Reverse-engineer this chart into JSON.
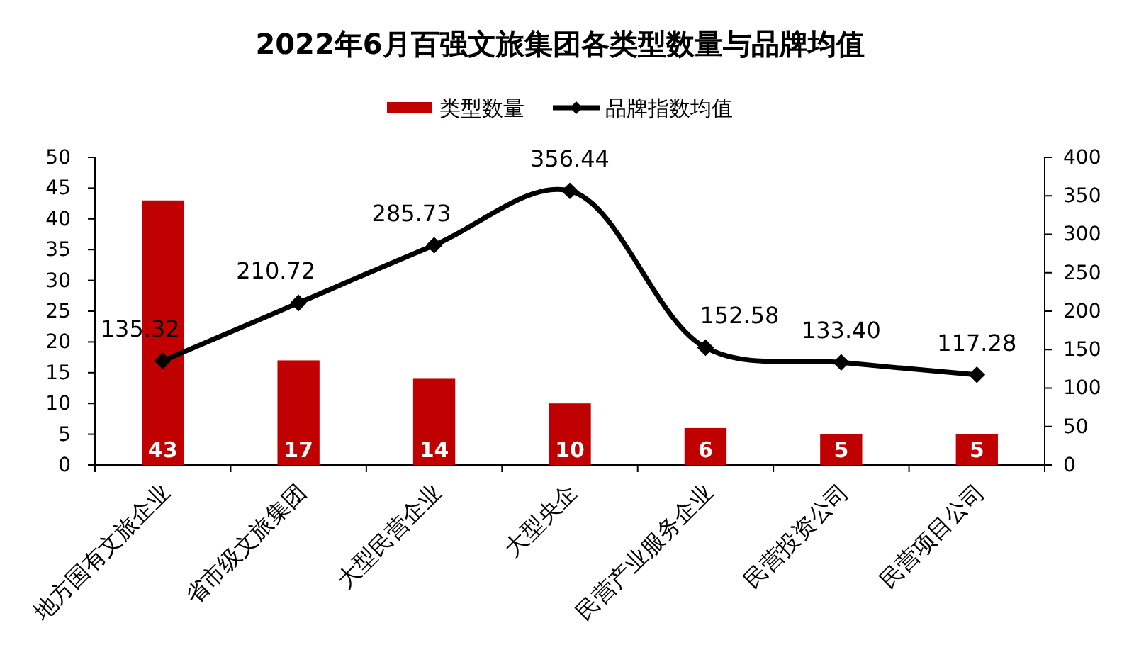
{
  "chart_data": {
    "type": "bar",
    "title": "2022年6月百强文旅集团各类型数量与品牌均值",
    "categories": [
      "地方国有文旅企业",
      "省市级文旅集团",
      "大型民营企业",
      "大型央企",
      "民营产业服务企业",
      "民营投资公司",
      "民营项目公司"
    ],
    "series": [
      {
        "name": "类型数量",
        "color": "#c00000",
        "values": [
          43,
          17,
          14,
          10,
          6,
          5,
          5
        ]
      },
      {
        "name": "品牌指数均值",
        "type": "line",
        "axis": "y2",
        "color": "#000000",
        "values": [
          135.32,
          210.72,
          285.73,
          356.44,
          152.58,
          133.4,
          117.28
        ],
        "value_labels": [
          "135.32",
          "210.72",
          "285.73",
          "356.44",
          "152.58",
          "133.40",
          "117.28"
        ]
      }
    ],
    "ylim": [
      0,
      50
    ],
    "yticks": [
      0,
      5,
      10,
      15,
      20,
      25,
      30,
      35,
      40,
      45,
      50
    ],
    "y2lim": [
      0,
      400
    ],
    "y2ticks": [
      0,
      50,
      100,
      150,
      200,
      250,
      300,
      350,
      400
    ],
    "data_labels": true,
    "legend": "top",
    "marker": "diamond"
  }
}
